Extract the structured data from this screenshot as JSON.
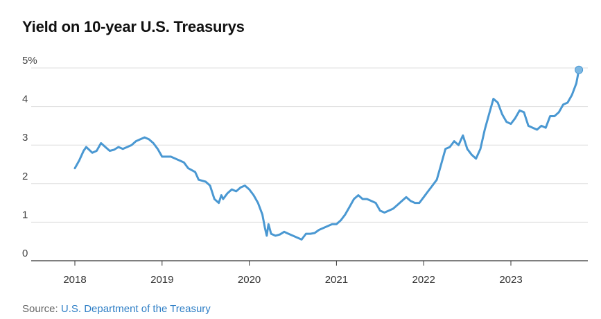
{
  "colors": {
    "line": "#4a98d2",
    "marker": "#7db8e3",
    "grid": "#dddddd",
    "axis": "#333333"
  },
  "source": {
    "prefix": "Source: ",
    "link_text": "U.S. Department of the Treasury"
  },
  "chart_data": {
    "type": "line",
    "title": "Yield on 10-year U.S. Treasurys",
    "xlabel": "",
    "ylabel": "",
    "y_tick_labels": [
      "0",
      "1",
      "2",
      "3",
      "4",
      "5%"
    ],
    "y_ticks": [
      0,
      1,
      2,
      3,
      4,
      5
    ],
    "ylim": [
      0,
      5
    ],
    "x_tick_labels": [
      "2018",
      "2019",
      "2020",
      "2021",
      "2022",
      "2023"
    ],
    "x_ticks": [
      2018,
      2019,
      2020,
      2021,
      2022,
      2023
    ],
    "xlim": [
      2017.4,
      2023.9
    ],
    "grid": true,
    "legend": "none",
    "end_marker": true,
    "series": [
      {
        "x": [
          2018.0,
          2018.05,
          2018.1,
          2018.13,
          2018.2,
          2018.25,
          2018.3,
          2018.35,
          2018.4,
          2018.45,
          2018.5,
          2018.55,
          2018.6,
          2018.65,
          2018.7,
          2018.75,
          2018.8,
          2018.85,
          2018.9,
          2018.95,
          2019.0,
          2019.1,
          2019.2,
          2019.25,
          2019.3,
          2019.38,
          2019.42,
          2019.5,
          2019.55,
          2019.6,
          2019.65,
          2019.68,
          2019.7,
          2019.75,
          2019.8,
          2019.85,
          2019.9,
          2019.95,
          2020.0,
          2020.05,
          2020.1,
          2020.15,
          2020.18,
          2020.2,
          2020.22,
          2020.25,
          2020.3,
          2020.35,
          2020.4,
          2020.45,
          2020.5,
          2020.55,
          2020.6,
          2020.65,
          2020.7,
          2020.75,
          2020.8,
          2020.85,
          2020.9,
          2020.95,
          2021.0,
          2021.05,
          2021.1,
          2021.15,
          2021.2,
          2021.25,
          2021.3,
          2021.35,
          2021.4,
          2021.45,
          2021.5,
          2021.55,
          2021.6,
          2021.65,
          2021.7,
          2021.75,
          2021.8,
          2021.85,
          2021.9,
          2021.95,
          2022.0,
          2022.05,
          2022.1,
          2022.15,
          2022.2,
          2022.25,
          2022.3,
          2022.35,
          2022.4,
          2022.45,
          2022.5,
          2022.55,
          2022.6,
          2022.65,
          2022.7,
          2022.75,
          2022.8,
          2022.85,
          2022.9,
          2022.95,
          2023.0,
          2023.05,
          2023.1,
          2023.15,
          2023.2,
          2023.25,
          2023.3,
          2023.35,
          2023.4,
          2023.45,
          2023.5,
          2023.55,
          2023.6,
          2023.65,
          2023.7,
          2023.75,
          2023.78
        ],
        "values": [
          2.4,
          2.6,
          2.85,
          2.95,
          2.8,
          2.85,
          3.05,
          2.95,
          2.85,
          2.88,
          2.95,
          2.9,
          2.95,
          3.0,
          3.1,
          3.15,
          3.2,
          3.15,
          3.05,
          2.9,
          2.7,
          2.7,
          2.6,
          2.55,
          2.4,
          2.3,
          2.1,
          2.05,
          1.95,
          1.6,
          1.5,
          1.7,
          1.6,
          1.75,
          1.85,
          1.8,
          1.9,
          1.95,
          1.85,
          1.7,
          1.5,
          1.2,
          0.85,
          0.65,
          0.95,
          0.7,
          0.65,
          0.68,
          0.75,
          0.7,
          0.65,
          0.6,
          0.55,
          0.7,
          0.7,
          0.72,
          0.8,
          0.85,
          0.9,
          0.95,
          0.95,
          1.05,
          1.2,
          1.4,
          1.6,
          1.7,
          1.6,
          1.6,
          1.55,
          1.5,
          1.3,
          1.25,
          1.3,
          1.35,
          1.45,
          1.55,
          1.65,
          1.55,
          1.5,
          1.5,
          1.65,
          1.8,
          1.95,
          2.1,
          2.5,
          2.9,
          2.95,
          3.1,
          3.0,
          3.25,
          2.9,
          2.75,
          2.65,
          2.9,
          3.4,
          3.8,
          4.2,
          4.1,
          3.8,
          3.6,
          3.55,
          3.7,
          3.9,
          3.85,
          3.5,
          3.45,
          3.4,
          3.5,
          3.45,
          3.75,
          3.75,
          3.85,
          4.05,
          4.1,
          4.3,
          4.6,
          4.95
        ]
      }
    ]
  }
}
